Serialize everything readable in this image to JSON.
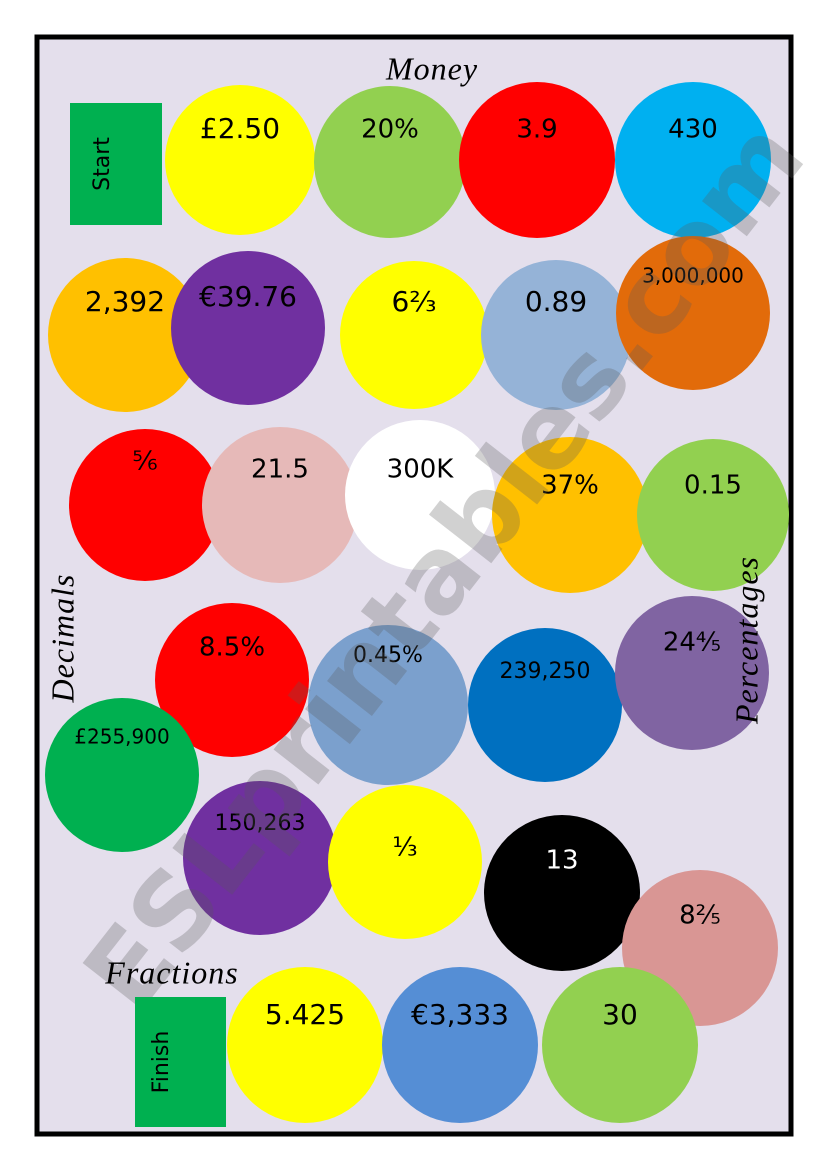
{
  "board": {
    "title": "Money",
    "side_labels": [
      "Decimals",
      "Percentages",
      "Fractions"
    ],
    "start": "Start",
    "finish": "Finish",
    "watermark": "ESLprintables.com",
    "spaces": [
      {
        "label": "£2.50",
        "color": "#ffff00"
      },
      {
        "label": "20%",
        "color": "#92d050"
      },
      {
        "label": "3.9",
        "color": "#ff0000"
      },
      {
        "label": "430",
        "color": "#00b0f0"
      },
      {
        "label": "2,392",
        "color": "#ffc000"
      },
      {
        "label": "€39.76",
        "color": "#7030a0"
      },
      {
        "label": "6⅔",
        "color": "#ffff00"
      },
      {
        "label": "0.89",
        "color": "#95b3d7"
      },
      {
        "label": "3,000,000",
        "color": "#e26b0a"
      },
      {
        "label": "⅚",
        "color": "#ff0000"
      },
      {
        "label": "21.5",
        "color": "#e6b9b8"
      },
      {
        "label": "300K",
        "color": "#ffffff"
      },
      {
        "label": "37%",
        "color": "#ffc000"
      },
      {
        "label": "0.15",
        "color": "#92d050"
      },
      {
        "label": "8.5%",
        "color": "#ff0000"
      },
      {
        "label": "0.45%",
        "color": "#7ba0cd"
      },
      {
        "label": "239,250",
        "color": "#0070c0"
      },
      {
        "label": "24⅘",
        "color": "#8064a2"
      },
      {
        "label": "£255,900",
        "color": "#00b050"
      },
      {
        "label": "150,263",
        "color": "#7030a0"
      },
      {
        "label": "⅓",
        "color": "#ffff00"
      },
      {
        "label": "13",
        "color": "#000000"
      },
      {
        "label": "8⅖",
        "color": "#d99694"
      },
      {
        "label": "5.425",
        "color": "#ffff00"
      },
      {
        "label": "€3,333",
        "color": "#558ed5"
      },
      {
        "label": "30",
        "color": "#92d050"
      }
    ]
  }
}
